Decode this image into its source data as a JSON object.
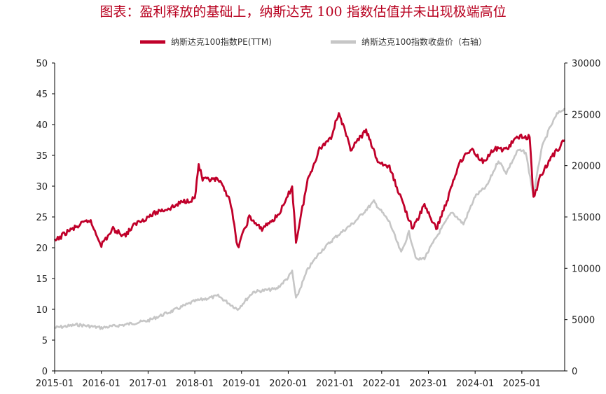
{
  "chart_data": {
    "type": "line",
    "title": "图表：盈利释放的基础上，纳斯达克 100 指数估值并未出现极端高位",
    "legend_position": "top-center",
    "grid": false,
    "x_labels": [
      "2015-01",
      "2016-01",
      "2017-01",
      "2018-01",
      "2019-01",
      "2020-01",
      "2021-01",
      "2022-01",
      "2023-01",
      "2024-01",
      "2025-01"
    ],
    "left_axis": {
      "ylim": [
        0,
        50
      ],
      "ticks": [
        0,
        5,
        10,
        15,
        20,
        25,
        30,
        35,
        40,
        45,
        50
      ]
    },
    "right_axis": {
      "ylim": [
        0,
        30000
      ],
      "ticks": [
        0,
        5000,
        10000,
        15000,
        20000,
        25000,
        30000
      ]
    },
    "series": [
      {
        "name": "纳斯达克100指数PE(TTM)",
        "axis": "left",
        "color": "#c0002a",
        "x": [
          "2015-01",
          "2015-04",
          "2015-07",
          "2015-10",
          "2016-01",
          "2016-04",
          "2016-07",
          "2016-10",
          "2017-01",
          "2017-04",
          "2017-07",
          "2017-10",
          "2018-01",
          "2018-02",
          "2018-03",
          "2018-07",
          "2018-10",
          "2018-12",
          "2019-03",
          "2019-06",
          "2019-10",
          "2019-12",
          "2020-02",
          "2020-03",
          "2020-06",
          "2020-09",
          "2020-12",
          "2021-02",
          "2021-05",
          "2021-09",
          "2021-12",
          "2022-03",
          "2022-06",
          "2022-09",
          "2022-12",
          "2023-03",
          "2023-06",
          "2023-09",
          "2023-12",
          "2024-03",
          "2024-06",
          "2024-09",
          "2024-12",
          "2025-03",
          "2025-04",
          "2025-06",
          "2025-09",
          "2025-12"
        ],
        "values": [
          21,
          22.5,
          23.5,
          24.5,
          20.5,
          23,
          22,
          24,
          25,
          26,
          26.5,
          27.5,
          28,
          33.5,
          31,
          31,
          28,
          20,
          25,
          23,
          25,
          27,
          30,
          21,
          31,
          36,
          38,
          42,
          36,
          39,
          34,
          33,
          28,
          23,
          27,
          23,
          28,
          34,
          36,
          34,
          36,
          36,
          38,
          38,
          28,
          32,
          35,
          37.5
        ]
      },
      {
        "name": "纳斯达克100指数收盘价（右轴）",
        "axis": "right",
        "color": "#c6c6c6",
        "x": [
          "2015-01",
          "2015-07",
          "2016-01",
          "2016-07",
          "2017-01",
          "2017-07",
          "2018-01",
          "2018-07",
          "2018-12",
          "2019-04",
          "2019-10",
          "2020-01",
          "2020-02",
          "2020-03",
          "2020-06",
          "2020-09",
          "2021-01",
          "2021-06",
          "2021-11",
          "2022-03",
          "2022-06",
          "2022-08",
          "2022-10",
          "2022-12",
          "2023-03",
          "2023-07",
          "2023-10",
          "2024-01",
          "2024-04",
          "2024-07",
          "2024-09",
          "2024-12",
          "2025-02",
          "2025-04",
          "2025-06",
          "2025-08",
          "2025-10",
          "2025-12"
        ],
        "values": [
          4200,
          4500,
          4200,
          4500,
          4900,
          5800,
          6800,
          7300,
          6000,
          7700,
          8000,
          9100,
          9700,
          7000,
          9900,
          11500,
          13000,
          14500,
          16500,
          14500,
          11500,
          13500,
          10800,
          11000,
          13000,
          15500,
          14300,
          17000,
          18000,
          20500,
          19300,
          21500,
          21300,
          17000,
          21600,
          23500,
          25000,
          25600
        ]
      }
    ]
  }
}
